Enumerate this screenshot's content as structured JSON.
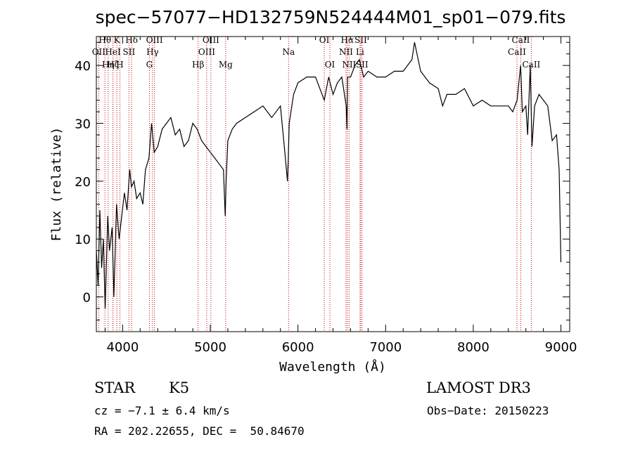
{
  "chart_data": {
    "type": "line",
    "title": "spec−57077−HD132759N524444M01_sp01−079.fits",
    "xlabel": "Wavelength (Å)",
    "ylabel": "Flux (relative)",
    "xlim": [
      3700,
      9100
    ],
    "ylim": [
      -6,
      45
    ],
    "x_ticks": [
      4000,
      5000,
      6000,
      7000,
      8000,
      9000
    ],
    "y_ticks": [
      0,
      10,
      20,
      30,
      40
    ],
    "grid": false,
    "series": [
      {
        "name": "spectrum",
        "x": [
          3700,
          3720,
          3740,
          3760,
          3780,
          3800,
          3830,
          3850,
          3880,
          3900,
          3930,
          3960,
          3990,
          4020,
          4050,
          4080,
          4100,
          4130,
          4160,
          4200,
          4230,
          4260,
          4300,
          4330,
          4360,
          4400,
          4450,
          4500,
          4550,
          4600,
          4650,
          4700,
          4750,
          4800,
          4850,
          4900,
          4950,
          5000,
          5050,
          5100,
          5150,
          5170,
          5180,
          5200,
          5250,
          5300,
          5400,
          5500,
          5600,
          5700,
          5800,
          5850,
          5880,
          5890,
          5900,
          5950,
          6000,
          6100,
          6200,
          6300,
          6350,
          6400,
          6450,
          6500,
          6550,
          6560,
          6565,
          6600,
          6650,
          6700,
          6750,
          6800,
          6900,
          7000,
          7100,
          7200,
          7300,
          7330,
          7400,
          7500,
          7600,
          7650,
          7700,
          7800,
          7900,
          8000,
          8100,
          8200,
          8300,
          8400,
          8450,
          8500,
          8540,
          8560,
          8600,
          8620,
          8650,
          8670,
          8700,
          8750,
          8800,
          8850,
          8900,
          8950,
          8980,
          9000
        ],
        "y": [
          8,
          2,
          15,
          5,
          10,
          -2,
          14,
          8,
          12,
          0,
          16,
          10,
          14,
          18,
          15,
          22,
          19,
          20,
          17,
          18,
          16,
          22,
          24,
          30,
          25,
          26,
          29,
          30,
          31,
          28,
          29,
          26,
          27,
          30,
          29,
          27,
          26,
          25,
          24,
          23,
          22,
          14,
          20,
          27,
          29,
          30,
          31,
          32,
          33,
          31,
          33,
          25,
          20,
          24,
          30,
          35,
          37,
          38,
          38,
          34,
          38,
          35,
          37,
          38,
          33,
          29,
          38,
          38,
          40,
          41,
          38,
          39,
          38,
          38,
          39,
          39,
          41,
          44,
          39,
          37,
          36,
          33,
          35,
          35,
          36,
          33,
          34,
          33,
          33,
          33,
          32,
          34,
          40,
          32,
          33,
          28,
          40,
          26,
          33,
          35,
          34,
          33,
          27,
          28,
          22,
          6
        ]
      }
    ],
    "line_markers": [
      {
        "label": "Hθ",
        "wavelength": 3798,
        "row": 1
      },
      {
        "label": "OII",
        "wavelength": 3727,
        "row": 2
      },
      {
        "label": "Hη",
        "wavelength": 3835,
        "row": 3
      },
      {
        "label": "K",
        "wavelength": 3934,
        "row": 1
      },
      {
        "label": "HeI",
        "wavelength": 3889,
        "row": 2
      },
      {
        "label": "Hζ",
        "wavelength": 3889,
        "row": 3
      },
      {
        "label": "Hδ",
        "wavelength": 4102,
        "row": 1
      },
      {
        "label": "SII",
        "wavelength": 4072,
        "row": 2
      },
      {
        "label": "H",
        "wavelength": 3969,
        "row": 3
      },
      {
        "label": "OIII",
        "wavelength": 4363,
        "row": 1
      },
      {
        "label": "Hγ",
        "wavelength": 4341,
        "row": 2
      },
      {
        "label": "G",
        "wavelength": 4305,
        "row": 3
      },
      {
        "label": "OIII",
        "wavelength": 5007,
        "row": 1
      },
      {
        "label": "OIII",
        "wavelength": 4959,
        "row": 2
      },
      {
        "label": "Hβ",
        "wavelength": 4861,
        "row": 3
      },
      {
        "label": "Mg",
        "wavelength": 5175,
        "row": 3
      },
      {
        "label": "Na",
        "wavelength": 5893,
        "row": 2
      },
      {
        "label": "OI",
        "wavelength": 6300,
        "row": 1
      },
      {
        "label": "OI",
        "wavelength": 6364,
        "row": 3
      },
      {
        "label": "Hα",
        "wavelength": 6563,
        "row": 1
      },
      {
        "label": "SII",
        "wavelength": 6716,
        "row": 1
      },
      {
        "label": "NII",
        "wavelength": 6548,
        "row": 2
      },
      {
        "label": "Li",
        "wavelength": 6708,
        "row": 2
      },
      {
        "label": "NII",
        "wavelength": 6583,
        "row": 3
      },
      {
        "label": "SII",
        "wavelength": 6731,
        "row": 3
      },
      {
        "label": "CaII",
        "wavelength": 8542,
        "row": 1
      },
      {
        "label": "CaII",
        "wavelength": 8498,
        "row": 2
      },
      {
        "label": "CaII",
        "wavelength": 8662,
        "row": 3
      }
    ]
  },
  "info": {
    "object_type": "STAR",
    "subclass": "K5",
    "survey": "LAMOST DR3",
    "cz": "cz = −7.1 ± 6.4 km/s",
    "obs_date": "Obs−Date: 20150223",
    "coords": "RA = 202.22655, DEC =  50.84670"
  },
  "colors": {
    "spectrum": "#000000",
    "line_marker": "#cc0000"
  }
}
